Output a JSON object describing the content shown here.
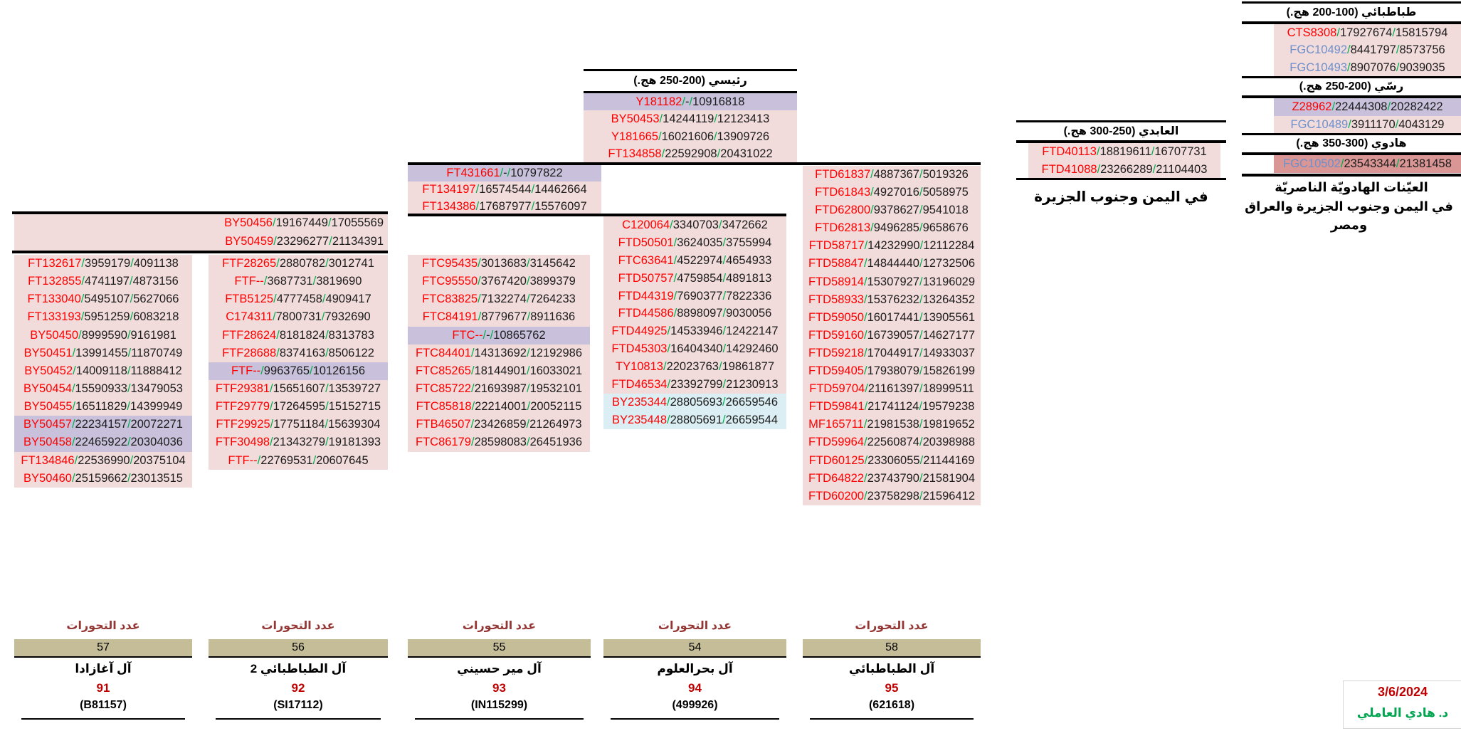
{
  "sections": {
    "tabatabai": {
      "title": "طباطبائي (100-200 هج.)",
      "rows": [
        {
          "name": "CTS8308",
          "v1": "17927674",
          "v2": "15815794"
        },
        {
          "name": "FGC10492",
          "v1": "8441797",
          "v2": "8573756",
          "color": "blue"
        },
        {
          "name": "FGC10493",
          "v1": "8907076",
          "v2": "9039035",
          "color": "blue"
        }
      ]
    },
    "rassi": {
      "title": "رسّي (200-250 هج.)",
      "rows": [
        {
          "name": "Z28962",
          "v1": "22444308",
          "v2": "20282422",
          "bg": "purple"
        },
        {
          "name": "FGC10489",
          "v1": "3911170",
          "v2": "4043129",
          "color": "blue"
        }
      ]
    },
    "hadawi": {
      "title": "هادوي (300-350 هج.)",
      "rows": [
        {
          "name": "FGC10502",
          "v1": "23543344",
          "v2": "21381458",
          "color": "blue",
          "bg": "darkred"
        }
      ],
      "note_line1": "العيّنات الهادويّة الناصريّة",
      "note_line2": "في اليمن وجنوب الجزيرة والعراق ومصر"
    },
    "abidi": {
      "title": "العابدي (250-300 هج.)",
      "rows": [
        {
          "name": "FTD40113",
          "v1": "18819611",
          "v2": "16707731"
        },
        {
          "name": "FTD41088",
          "v1": "23266289",
          "v2": "21104403"
        }
      ],
      "note": "في اليمن وجنوب الجزيرة"
    },
    "raisi": {
      "title": "رئيسي (200-250 هج.)",
      "rows": [
        {
          "name": "Y181182",
          "v1": "-",
          "v2": "10916818",
          "bg": "purple"
        },
        {
          "name": "BY50453",
          "v1": "14244119",
          "v2": "12123413"
        },
        {
          "name": "Y181665",
          "v1": "16021606",
          "v2": "13909726"
        },
        {
          "name": "FT134858",
          "v1": "22592908",
          "v2": "20431022"
        }
      ]
    }
  },
  "shared_band": {
    "rows": [
      {
        "name": "BY50456",
        "v1": "19167449",
        "v2": "17055569"
      },
      {
        "name": "BY50459",
        "v1": "23296277",
        "v2": "21134391"
      }
    ]
  },
  "columns": {
    "col1": {
      "rows": [
        {
          "name": "FT132617",
          "v1": "3959179",
          "v2": "4091138"
        },
        {
          "name": "FT132855",
          "v1": "4741197",
          "v2": "4873156"
        },
        {
          "name": "FT133040",
          "v1": "5495107",
          "v2": "5627066"
        },
        {
          "name": "FT133193",
          "v1": "5951259",
          "v2": "6083218"
        },
        {
          "name": "BY50450",
          "v1": "8999590",
          "v2": "9161981"
        },
        {
          "name": "BY50451",
          "v1": "13991455",
          "v2": "11870749"
        },
        {
          "name": "BY50452",
          "v1": "14009118",
          "v2": "11888412"
        },
        {
          "name": "BY50454",
          "v1": "15590933",
          "v2": "13479053"
        },
        {
          "name": "BY50455",
          "v1": "16511829",
          "v2": "14399949"
        },
        {
          "name": "BY50457",
          "v1": "22234157",
          "v2": "20072271",
          "bg": "purple"
        },
        {
          "name": "BY50458",
          "v1": "22465922",
          "v2": "20304036",
          "bg": "purple"
        },
        {
          "name": "FT134846",
          "v1": "22536990",
          "v2": "20375104"
        },
        {
          "name": "BY50460",
          "v1": "25159662",
          "v2": "23013515"
        }
      ]
    },
    "col2": {
      "rows": [
        {
          "name": "FTF28265",
          "v1": "2880782",
          "v2": "3012741"
        },
        {
          "name": "FTF--",
          "v1": "3687731",
          "v2": "3819690"
        },
        {
          "name": "FTB5125",
          "v1": "4777458",
          "v2": "4909417"
        },
        {
          "name": "C174311",
          "v1": "7800731",
          "v2": "7932690"
        },
        {
          "name": "FTF28624",
          "v1": "8181824",
          "v2": "8313783"
        },
        {
          "name": "FTF28688",
          "v1": "8374163",
          "v2": "8506122"
        },
        {
          "name": "FTF--",
          "v1": "9963765",
          "v2": "10126156",
          "bg": "purple"
        },
        {
          "name": "FTF29381",
          "v1": "15651607",
          "v2": "13539727"
        },
        {
          "name": "FTF29779",
          "v1": "17264595",
          "v2": "15152715"
        },
        {
          "name": "FTF29925",
          "v1": "17751184",
          "v2": "15639304"
        },
        {
          "name": "FTF30498",
          "v1": "21343279",
          "v2": "19181393"
        },
        {
          "name": "FTF--",
          "v1": "22769531",
          "v2": "20607645"
        }
      ]
    },
    "col3_upper": {
      "rows": [
        {
          "name": "FT431661",
          "v1": "-",
          "v2": "10797822",
          "bg": "purple"
        },
        {
          "name": "FT134197",
          "v1": "16574544",
          "v2": "14462664"
        },
        {
          "name": "FT134386",
          "v1": "17687977",
          "v2": "15576097"
        }
      ]
    },
    "col3_lower": {
      "rows": [
        {
          "name": "FTC95435",
          "v1": "3013683",
          "v2": "3145642"
        },
        {
          "name": "FTC95550",
          "v1": "3767420",
          "v2": "3899379"
        },
        {
          "name": "FTC83825",
          "v1": "7132274",
          "v2": "7264233"
        },
        {
          "name": "FTC84191",
          "v1": "8779677",
          "v2": "8911636"
        },
        {
          "name": "FTC--",
          "v1": "-",
          "v2": "10865762",
          "bg": "purple"
        },
        {
          "name": "FTC84401",
          "v1": "14313692",
          "v2": "12192986"
        },
        {
          "name": "FTC85265",
          "v1": "18144901",
          "v2": "16033021"
        },
        {
          "name": "FTC85722",
          "v1": "21693987",
          "v2": "19532101"
        },
        {
          "name": "FTC85818",
          "v1": "22214001",
          "v2": "20052115"
        },
        {
          "name": "FTB46507",
          "v1": "23426859",
          "v2": "21264973"
        },
        {
          "name": "FTC86179",
          "v1": "28598083",
          "v2": "26451936"
        }
      ]
    },
    "col4": {
      "rows": [
        {
          "name": "C120064",
          "v1": "3340703",
          "v2": "3472662"
        },
        {
          "name": "FTD50501",
          "v1": "3624035",
          "v2": "3755994"
        },
        {
          "name": "FTC63641",
          "v1": "4522974",
          "v2": "4654933"
        },
        {
          "name": "FTD50757",
          "v1": "4759854",
          "v2": "4891813"
        },
        {
          "name": "FTD44319",
          "v1": "7690377",
          "v2": "7822336"
        },
        {
          "name": "FTD44586",
          "v1": "8898097",
          "v2": "9030056"
        },
        {
          "name": "FTD44925",
          "v1": "14533946",
          "v2": "12422147"
        },
        {
          "name": "FTD45303",
          "v1": "16404340",
          "v2": "14292460"
        },
        {
          "name": "TY10813",
          "v1": "22023763",
          "v2": "19861877"
        },
        {
          "name": "FTD46534",
          "v1": "23392799",
          "v2": "21230913"
        },
        {
          "name": "BY235344",
          "v1": "28805693",
          "v2": "26659546",
          "bg": "blue"
        },
        {
          "name": "BY235448",
          "v1": "28805691",
          "v2": "26659544",
          "bg": "blue"
        }
      ]
    },
    "col5": {
      "rows": [
        {
          "name": "FTD61837",
          "v1": "4887367",
          "v2": "5019326"
        },
        {
          "name": "FTD61843",
          "v1": "4927016",
          "v2": "5058975"
        },
        {
          "name": "FTD62800",
          "v1": "9378627",
          "v2": "9541018"
        },
        {
          "name": "FTD62813",
          "v1": "9496285",
          "v2": "9658676"
        },
        {
          "name": "FTD58717",
          "v1": "14232990",
          "v2": "12112284"
        },
        {
          "name": "FTD58847",
          "v1": "14844440",
          "v2": "12732506"
        },
        {
          "name": "FTD58914",
          "v1": "15307927",
          "v2": "13196029"
        },
        {
          "name": "FTD58933",
          "v1": "15376232",
          "v2": "13264352"
        },
        {
          "name": "FTD59050",
          "v1": "16017441",
          "v2": "13905561"
        },
        {
          "name": "FTD59160",
          "v1": "16739057",
          "v2": "14627177"
        },
        {
          "name": "FTD59218",
          "v1": "17044917",
          "v2": "14933037"
        },
        {
          "name": "FTD59405",
          "v1": "17938079",
          "v2": "15826199"
        },
        {
          "name": "FTD59704",
          "v1": "21161397",
          "v2": "18999511"
        },
        {
          "name": "FTD59841",
          "v1": "21741124",
          "v2": "19579238"
        },
        {
          "name": "MF165711",
          "v1": "21981538",
          "v2": "19819652"
        },
        {
          "name": "FTD59964",
          "v1": "22560874",
          "v2": "20398988"
        },
        {
          "name": "FTD60125",
          "v1": "23306055",
          "v2": "21144169"
        },
        {
          "name": "FTD64822",
          "v1": "23743790",
          "v2": "21581904"
        },
        {
          "name": "FTD60200",
          "v1": "23758298",
          "v2": "21596412"
        }
      ]
    }
  },
  "summary": [
    {
      "label": "عدد التحورات",
      "count": "57",
      "name": "آل آغازادا",
      "number": "91",
      "id": "(B81157)"
    },
    {
      "label": "عدد التحورات",
      "count": "56",
      "name": "آل الطباطبائي 2",
      "number": "92",
      "id": "(SI17112)"
    },
    {
      "label": "عدد التحورات",
      "count": "55",
      "name": "آل مير حسيني",
      "number": "93",
      "id": "(IN115299)"
    },
    {
      "label": "عدد التحورات",
      "count": "54",
      "name": "آل بحرالعلوم",
      "number": "94",
      "id": "(499926)"
    },
    {
      "label": "عدد التحورات",
      "count": "58",
      "name": "آل الطباطبائي",
      "number": "95",
      "id": "(621618)"
    }
  ],
  "footer": {
    "date": "3/6/2024",
    "author": "د. هادي العاملي"
  },
  "colors": {
    "row_pink": "#F2DCDB",
    "row_purple": "#C9C1DB",
    "row_light_blue": "#DAEEF3",
    "row_dark_red": "#D99694",
    "count_bar_tan": "#C4BD97",
    "snp_red": "#FF0000",
    "snp_blue": "#6D8FCB",
    "slash_green": "#00B050",
    "label_maroon": "#943634",
    "accent_red": "#C00000",
    "author_green": "#00A550"
  }
}
